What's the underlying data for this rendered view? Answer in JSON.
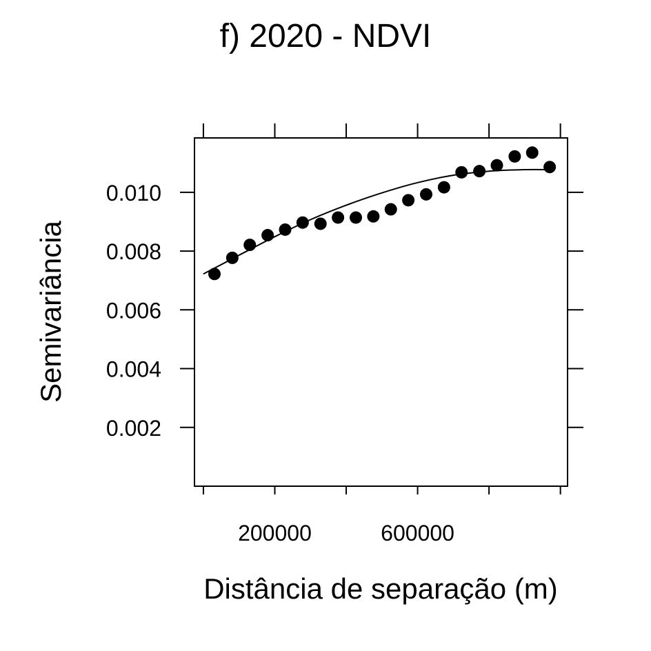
{
  "chart_data": {
    "type": "scatter",
    "title": "f) 2020 - NDVI",
    "xlabel": "Distância de separação (m)",
    "ylabel": "Semivariância",
    "xlim": [
      -25000,
      1020000
    ],
    "ylim": [
      0.0,
      0.01185
    ],
    "x_ticks": [
      0,
      200000,
      400000,
      600000,
      800000,
      1000000
    ],
    "x_tick_labels": [
      "200000",
      "600000"
    ],
    "x_tick_label_values": [
      200000,
      600000
    ],
    "y_ticks": [
      0.002,
      0.004,
      0.006,
      0.008,
      0.01
    ],
    "y_tick_labels": [
      "0.002",
      "0.004",
      "0.006",
      "0.008",
      "0.010"
    ],
    "grid": false,
    "legend": "none",
    "series": [
      {
        "kind": "points",
        "x": [
          31000,
          81000,
          130000,
          180000,
          229000,
          278000,
          328000,
          377000,
          427000,
          476000,
          525000,
          574000,
          624000,
          674000,
          723000,
          773000,
          822000,
          872000,
          921000,
          970000
        ],
        "y": [
          0.00722,
          0.00777,
          0.00821,
          0.00854,
          0.00873,
          0.00897,
          0.00893,
          0.00914,
          0.00914,
          0.00918,
          0.00942,
          0.00973,
          0.00993,
          0.01017,
          0.01068,
          0.01072,
          0.01092,
          0.01122,
          0.01135,
          0.01086
        ]
      },
      {
        "kind": "fitted-model",
        "x": [
          0,
          100000,
          200000,
          300000,
          400000,
          500000,
          600000,
          700000,
          800000,
          900000,
          970000
        ],
        "y": [
          0.00722,
          0.00786,
          0.00849,
          0.00907,
          0.00956,
          0.00998,
          0.01033,
          0.01058,
          0.01072,
          0.01077,
          0.01077
        ]
      }
    ]
  }
}
